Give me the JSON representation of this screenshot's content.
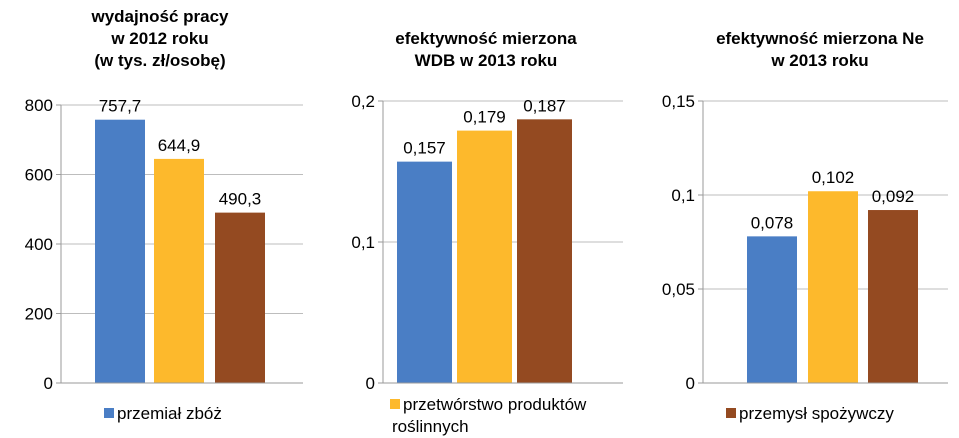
{
  "colors": {
    "blue": "#4a7ec5",
    "yellow": "#fdb92c",
    "brown": "#944a21",
    "axis": "#9a9a9a",
    "grid": "#bdbdbd"
  },
  "chart_data": [
    {
      "type": "bar",
      "title_lines": [
        "wydajność pracy",
        "w 2012 roku",
        "(w tys. zł/osobę)"
      ],
      "categories": [
        "przemiał zbóż",
        "przetwórstwo produktów roślinnych",
        "przemysł spożywczy"
      ],
      "values": [
        757.7,
        644.9,
        490.3
      ],
      "value_labels": [
        "757,7",
        "644,9",
        "490,3"
      ],
      "ylim": [
        0,
        800
      ],
      "yticks": [
        0,
        200,
        400,
        600,
        800
      ],
      "ytick_labels": [
        "0",
        "200",
        "400",
        "600",
        "800"
      ],
      "grid": true,
      "legend": {
        "label": "przemiał zbóż",
        "color": "blue",
        "position": "bottom"
      }
    },
    {
      "type": "bar",
      "title_lines": [
        "efektywność mierzona",
        "WDB w 2013 roku"
      ],
      "categories": [
        "przemiał zbóż",
        "przetwórstwo produktów roślinnych",
        "przemysł spożywczy"
      ],
      "values": [
        0.157,
        0.179,
        0.187
      ],
      "value_labels": [
        "0,157",
        "0,179",
        "0,187"
      ],
      "ylim": [
        0,
        0.2
      ],
      "yticks": [
        0,
        0.1,
        0.2
      ],
      "ytick_labels": [
        "0",
        "0,1",
        "0,2"
      ],
      "grid": true,
      "legend": {
        "label_lines": [
          "przetwórstwo produktów",
          "roślinnych"
        ],
        "color": "yellow",
        "position": "bottom"
      }
    },
    {
      "type": "bar",
      "title_lines": [
        "efektywność mierzona Ne",
        "w 2013 roku"
      ],
      "categories": [
        "przemiał zbóż",
        "przetwórstwo produktów roślinnych",
        "przemysł spożywczy"
      ],
      "values": [
        0.078,
        0.102,
        0.092
      ],
      "value_labels": [
        "0,078",
        "0,102",
        "0,092"
      ],
      "ylim": [
        0,
        0.15
      ],
      "yticks": [
        0,
        0.05,
        0.1,
        0.15
      ],
      "ytick_labels": [
        "0",
        "0,05",
        "0,1",
        "0,15"
      ],
      "grid": true,
      "legend": {
        "label": "przemysł spożywczy",
        "color": "brown",
        "position": "bottom"
      }
    }
  ]
}
